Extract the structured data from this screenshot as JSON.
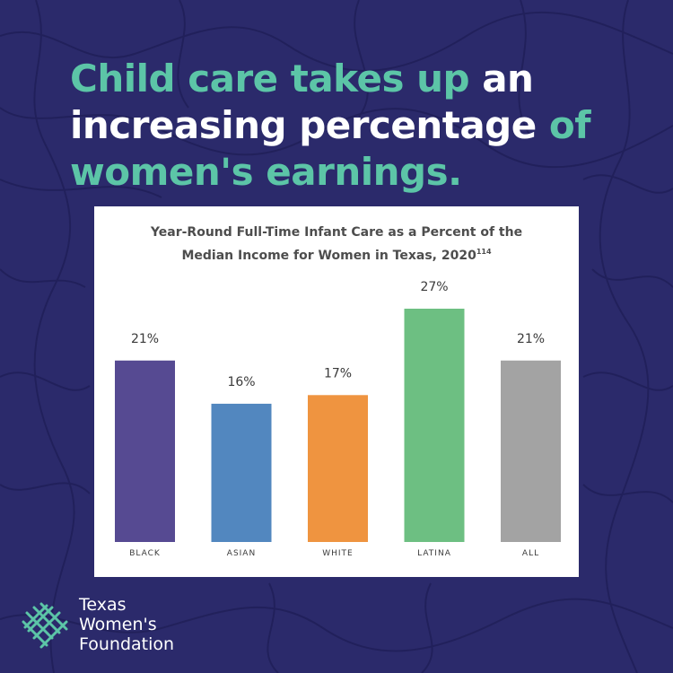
{
  "headline": {
    "part1": "Child care takes up ",
    "part2": "an",
    "part3": "increasing percentage",
    "part4": " of",
    "part5": "women's earnings."
  },
  "colors": {
    "background": "#2b2a6b",
    "accent": "#5cc5a7",
    "text_white": "#ffffff"
  },
  "chart_data": {
    "type": "bar",
    "title": "Year-Round Full-Time Infant Care as a Percent of the Median Income for Women in Texas, 2020",
    "title_line1": "Year-Round Full-Time Infant Care as a Percent of the",
    "title_line2": "Median Income for Women in Texas, 2020",
    "title_footnote": "114",
    "categories": [
      "BLACK",
      "ASIAN",
      "WHITE",
      "LATINA",
      "ALL"
    ],
    "values": [
      21,
      16,
      17,
      27,
      21
    ],
    "value_labels": [
      "21%",
      "16%",
      "17%",
      "27%",
      "21%"
    ],
    "colors": [
      "#564a92",
      "#5287bf",
      "#ef9440",
      "#6dbf82",
      "#a3a3a3"
    ],
    "ylim": [
      0,
      27
    ],
    "grid": false,
    "xlabel": "",
    "ylabel": ""
  },
  "logo": {
    "line1": "Texas",
    "line2": "Women's",
    "line3": "Foundation",
    "icon": "woven-cross-icon"
  }
}
